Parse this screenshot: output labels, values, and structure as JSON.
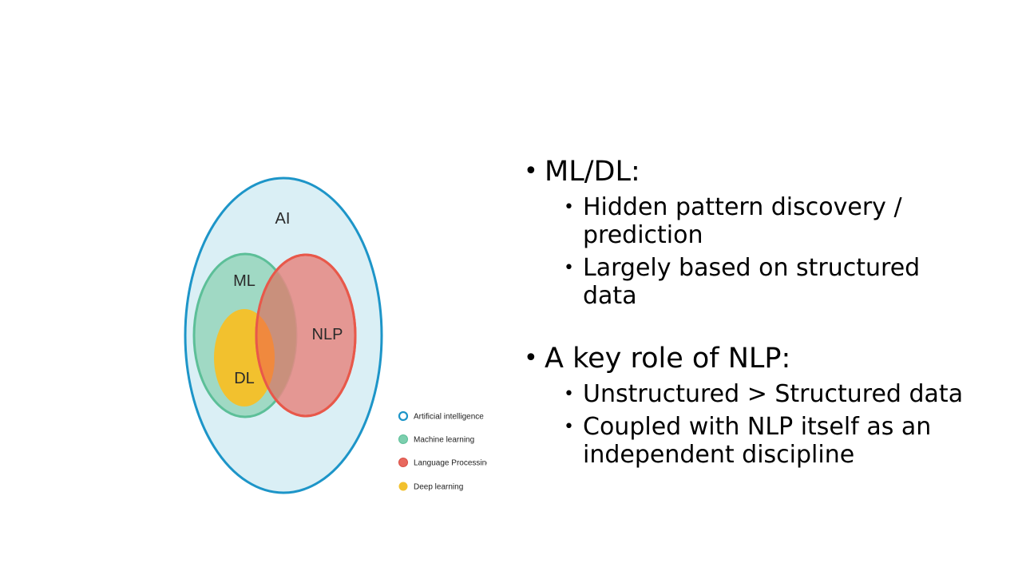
{
  "diagram": {
    "circles": {
      "ai": "AI",
      "ml": "ML",
      "nlp": "NLP",
      "dl": "DL"
    },
    "colors": {
      "ai_stroke": "#1d95c8",
      "ai_fill": "#daeff5",
      "ml_stroke": "#5cbf98",
      "ml_fill": "#a0d9c4",
      "nlp_stroke": "#e8584a",
      "nlp_fill": "#e58b85",
      "dl_fill": "#f2c12e",
      "overlap": "#f0893e"
    },
    "legend": [
      {
        "label": "Artificial intelligence",
        "icon": "ring-icon",
        "color": "#1d95c8"
      },
      {
        "label": "Machine learning",
        "icon": "dot-icon",
        "color": "#7ccfae"
      },
      {
        "label": "Language Processing",
        "icon": "dot-icon",
        "color": "#e8685e"
      },
      {
        "label": "Deep learning",
        "icon": "dot-icon",
        "color": "#f2c12e"
      }
    ]
  },
  "bullets": {
    "section1": {
      "title": "ML/DL:",
      "items": [
        "Hidden pattern discovery / prediction",
        "Largely based on structured data"
      ]
    },
    "section2": {
      "title": "A key role of NLP:",
      "items": [
        "Unstructured > Structured data",
        "Coupled with NLP itself as an independent discipline"
      ]
    }
  }
}
